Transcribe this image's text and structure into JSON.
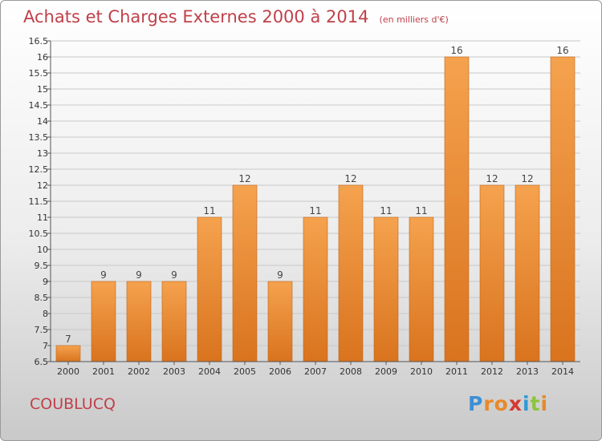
{
  "header": {
    "title": "Achats et Charges Externes 2000 à 2014",
    "unit": "(en milliers d'€)"
  },
  "footer": {
    "commune": "COUBLUCQ",
    "logo": {
      "letters": [
        "P",
        "r",
        "o",
        "x",
        "i",
        "t",
        "i"
      ],
      "colors": [
        "#3b8fd6",
        "#e8892a",
        "#e8892a",
        "#d43a2f",
        "#2f9ad4",
        "#8cc43c",
        "#e8892a"
      ]
    }
  },
  "colors": {
    "bar_light": "#f5a24e",
    "bar_dark": "#d9731e",
    "grid": "#c8c8c8",
    "title": "#c0404a"
  },
  "chart_data": {
    "type": "bar",
    "title": "Achats et Charges Externes 2000 à 2014",
    "subtitle": "(en milliers d'€)",
    "xlabel": "",
    "ylabel": "",
    "categories": [
      "2000",
      "2001",
      "2002",
      "2003",
      "2004",
      "2005",
      "2006",
      "2007",
      "2008",
      "2009",
      "2010",
      "2011",
      "2012",
      "2013",
      "2014"
    ],
    "values": [
      7,
      9,
      9,
      9,
      11,
      12,
      9,
      11,
      12,
      11,
      11,
      16,
      12,
      12,
      16
    ],
    "value_labels": [
      "7",
      "9",
      "9",
      "9",
      "11",
      "12",
      "9",
      "11",
      "12",
      "11",
      "11",
      "16",
      "12",
      "12",
      "16"
    ],
    "ylim": [
      6.5,
      16.5
    ],
    "yticks": [
      "6.5",
      "7",
      "7.5",
      "8",
      "8.5",
      "9",
      "9.5",
      "10",
      "10.5",
      "11",
      "11.5",
      "12",
      "12.5",
      "13",
      "13.5",
      "14",
      "14.5",
      "15",
      "15.5",
      "16",
      "16.5"
    ],
    "grid": true,
    "legend": "none"
  }
}
